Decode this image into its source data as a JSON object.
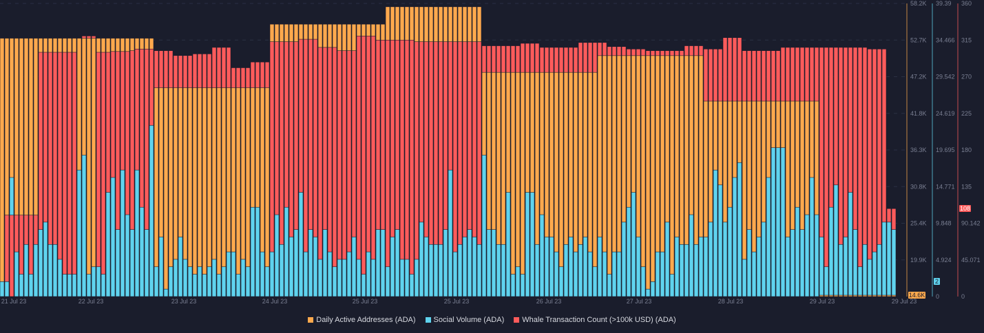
{
  "chart_data": {
    "type": "bar",
    "title": "",
    "mode": "overlapping",
    "x_tick_labels": [
      "21 Jul 23",
      "22 Jul 23",
      "23 Jul 23",
      "24 Jul 23",
      "25 Jul 23",
      "25 Jul 23",
      "26 Jul 23",
      "27 Jul 23",
      "28 Jul 23",
      "29 Jul 23",
      "29 Jul 23"
    ],
    "axes": {
      "daa": {
        "color": "#ffa94d",
        "ticks": [
          "58.2K",
          "52.7K",
          "47.2K",
          "41.8K",
          "36.3K",
          "30.8K",
          "25.4K",
          "19.9K"
        ],
        "ylim": [
          14400,
          58200
        ],
        "current_label": "14.6K"
      },
      "social": {
        "color": "#5fd3ee",
        "ticks": [
          "39.39",
          "34.466",
          "29.542",
          "24.619",
          "19.695",
          "14.771",
          "9.848",
          "4.924",
          "0"
        ],
        "ylim": [
          0,
          39.39
        ],
        "current_label": "2"
      },
      "whale": {
        "color": "#ff5b5b",
        "ticks": [
          "360",
          "315",
          "270",
          "225",
          "180",
          "135",
          "90.142",
          "45.071",
          "0"
        ],
        "ylim": [
          0,
          360
        ],
        "current_label": "108"
      }
    },
    "series": [
      {
        "name": "Daily Active Addresses (ADA)",
        "key": "daa",
        "color": "#ffa94d",
        "values": [
          53000,
          53000,
          53000,
          53000,
          53000,
          53000,
          53000,
          53000,
          53000,
          53000,
          53000,
          53000,
          53000,
          53000,
          53000,
          53000,
          53000,
          53000,
          53000,
          53000,
          53000,
          53000,
          53000,
          53000,
          53000,
          53000,
          53000,
          53000,
          53000,
          53000,
          53000,
          53000,
          45600,
          45600,
          45600,
          45600,
          45600,
          45600,
          45600,
          45600,
          45600,
          45600,
          45600,
          45600,
          45600,
          45600,
          45600,
          45600,
          45600,
          45600,
          45600,
          45600,
          45600,
          45600,
          45600,
          45600,
          55100,
          55100,
          55100,
          55100,
          55100,
          55100,
          55100,
          55100,
          55100,
          55100,
          55100,
          55100,
          55100,
          55100,
          55100,
          55100,
          55100,
          55100,
          55100,
          55100,
          55100,
          55100,
          55100,
          55100,
          57700,
          57700,
          57700,
          57700,
          57700,
          57700,
          57700,
          57700,
          57700,
          57700,
          57700,
          57700,
          57700,
          57700,
          57700,
          57700,
          57700,
          57700,
          57700,
          57700,
          47900,
          47900,
          47900,
          47900,
          47900,
          47900,
          47900,
          47900,
          47900,
          47900,
          47900,
          47900,
          47900,
          47900,
          47900,
          47900,
          47900,
          47900,
          47900,
          47900,
          47900,
          47900,
          47900,
          47900,
          50400,
          50400,
          50400,
          50400,
          50400,
          50400,
          50400,
          50400,
          50400,
          50400,
          50400,
          50400,
          50400,
          50400,
          50400,
          50400,
          50400,
          50400,
          50400,
          50400,
          50400,
          50400,
          43600,
          43600,
          43600,
          43600,
          43600,
          43600,
          43600,
          43600,
          43600,
          43600,
          43600,
          43600,
          43600,
          43600,
          43600,
          43600,
          43600,
          43600,
          43600,
          43600,
          43600,
          43600,
          43600,
          43600,
          14600,
          14600,
          14600,
          14600,
          14600,
          14600,
          14600,
          14600,
          14600,
          14600,
          14600,
          14600,
          14600,
          14600,
          14600,
          14600
        ]
      },
      {
        "name": "Social Volume (ADA)",
        "key": "social",
        "color": "#5fd3ee",
        "values": [
          2,
          2,
          16,
          6,
          3,
          7,
          3,
          7,
          9,
          10,
          7,
          7,
          5,
          3,
          3,
          3,
          17,
          19,
          3,
          4,
          4,
          3,
          14,
          16,
          9,
          17,
          11,
          9,
          17,
          12,
          9,
          23,
          4,
          8,
          1,
          4,
          5,
          8,
          5,
          4,
          3,
          4,
          3,
          4,
          5,
          3,
          4,
          6,
          6,
          3,
          5,
          4,
          12,
          12,
          6,
          4,
          6,
          11,
          7,
          12,
          8,
          9,
          14,
          6,
          9,
          8,
          5,
          9,
          6,
          4,
          5,
          5,
          6,
          8,
          5,
          3,
          6,
          5,
          9,
          9,
          4,
          8,
          9,
          5,
          5,
          3,
          5,
          10,
          8,
          7,
          7,
          7,
          9,
          17,
          6,
          7,
          8,
          9,
          8,
          7,
          19,
          9,
          9,
          7,
          7,
          14,
          3,
          4,
          3,
          14,
          14,
          7,
          11,
          8,
          8,
          6,
          4,
          7,
          8,
          6,
          7,
          8,
          6,
          4,
          8,
          6,
          3,
          6,
          6,
          10,
          12,
          14,
          8,
          4,
          1,
          2,
          6,
          6,
          10,
          3,
          8,
          7,
          7,
          11,
          7,
          8,
          8,
          10,
          17,
          15,
          10,
          12,
          16,
          18,
          5,
          9,
          6,
          8,
          10,
          16,
          20,
          20,
          20,
          8,
          9,
          12,
          9,
          11,
          16,
          11,
          8,
          4,
          12,
          15,
          7,
          8,
          14,
          9,
          4,
          7,
          5,
          6,
          7,
          10,
          10,
          9,
          3,
          2
        ]
      },
      {
        "name": "Whale Transaction Count (>100k USD) (ADA)",
        "key": "whale",
        "color": "#ff5b5b",
        "values": [
          0,
          100,
          100,
          100,
          100,
          100,
          100,
          100,
          300,
          300,
          300,
          300,
          300,
          300,
          300,
          300,
          0,
          320,
          320,
          320,
          300,
          300,
          300,
          301,
          301,
          301,
          301,
          302,
          304,
          304,
          304,
          304,
          302,
          302,
          302,
          302,
          296,
          296,
          296,
          296,
          298,
          298,
          298,
          298,
          306,
          306,
          306,
          306,
          281,
          281,
          281,
          281,
          288,
          288,
          288,
          288,
          313,
          313,
          313,
          313,
          313,
          313,
          316,
          316,
          316,
          316,
          306,
          306,
          306,
          306,
          302,
          302,
          302,
          302,
          320,
          320,
          320,
          320,
          315,
          315,
          315,
          315,
          315,
          315,
          315,
          315,
          313,
          313,
          313,
          313,
          313,
          313,
          313,
          313,
          313,
          313,
          313,
          313,
          313,
          313,
          308,
          308,
          308,
          308,
          308,
          308,
          308,
          308,
          311,
          311,
          311,
          311,
          306,
          306,
          306,
          306,
          306,
          306,
          306,
          306,
          312,
          312,
          312,
          312,
          312,
          312,
          307,
          307,
          307,
          307,
          304,
          304,
          304,
          304,
          302,
          302,
          302,
          302,
          302,
          302,
          302,
          302,
          308,
          308,
          308,
          308,
          304,
          304,
          304,
          304,
          318,
          318,
          318,
          318,
          302,
          302,
          302,
          302,
          302,
          302,
          302,
          302,
          306,
          306,
          306,
          306,
          306,
          306,
          306,
          306,
          306,
          306,
          306,
          306,
          306,
          306,
          306,
          306,
          306,
          306,
          304,
          304,
          304,
          304,
          108,
          108,
          108
        ]
      }
    ],
    "legend": {
      "position": "bottom-center",
      "items": [
        {
          "label": "Daily Active Addresses (ADA)",
          "color": "#ffa94d"
        },
        {
          "label": "Social Volume (ADA)",
          "color": "#5fd3ee"
        },
        {
          "label": "Whale Transaction Count (>100k USD) (ADA)",
          "color": "#ff5b5b"
        }
      ]
    }
  }
}
